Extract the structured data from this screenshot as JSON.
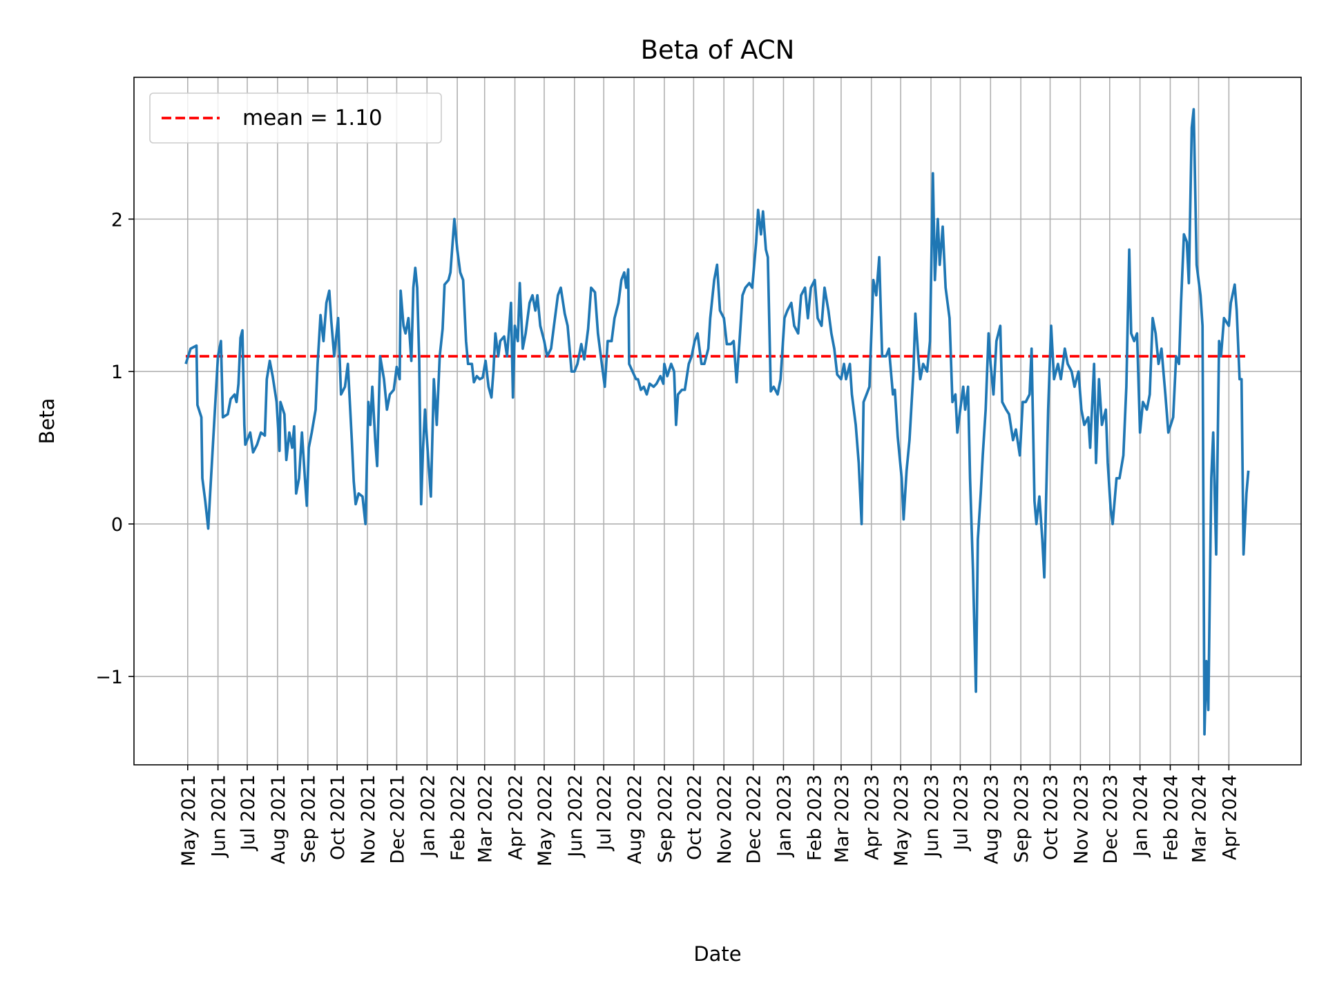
{
  "chart_data": {
    "type": "line",
    "title": "Beta of ACN",
    "xlabel": "Date",
    "ylabel": "Beta",
    "xlim": [
      "2021-03-07",
      "2024-06-14"
    ],
    "ylim": [
      -1.58,
      2.93
    ],
    "grid": true,
    "legend_position": "top-left",
    "yticks": [
      -1,
      0,
      1,
      2
    ],
    "ytick_labels": [
      "−1",
      "0",
      "1",
      "2"
    ],
    "xtick_labels": [
      "May 2021",
      "Jun 2021",
      "Jul 2021",
      "Aug 2021",
      "Sep 2021",
      "Oct 2021",
      "Nov 2021",
      "Dec 2021",
      "Jan 2022",
      "Feb 2022",
      "Mar 2022",
      "Apr 2022",
      "May 2022",
      "Jun 2022",
      "Jul 2022",
      "Aug 2022",
      "Sep 2022",
      "Oct 2022",
      "Nov 2022",
      "Dec 2022",
      "Jan 2023",
      "Feb 2023",
      "Mar 2023",
      "Apr 2023",
      "May 2023",
      "Jun 2023",
      "Jul 2023",
      "Aug 2023",
      "Sep 2023",
      "Oct 2023",
      "Nov 2023",
      "Dec 2023",
      "Jan 2024",
      "Feb 2024",
      "Mar 2024",
      "Apr 2024"
    ],
    "mean_line": {
      "label": "mean = 1.10",
      "value": 1.1,
      "color": "#ff0000",
      "style": "dashed"
    },
    "series": [
      {
        "color": "#1f77b4",
        "x": [
          "2021-04-29",
          "2021-05-04",
          "2021-05-10",
          "2021-05-11",
          "2021-05-15",
          "2021-05-16",
          "2021-05-19",
          "2021-05-22",
          "2021-05-24",
          "2021-06-01",
          "2021-06-04",
          "2021-06-06",
          "2021-06-11",
          "2021-06-14",
          "2021-06-18",
          "2021-06-20",
          "2021-06-22",
          "2021-06-24",
          "2021-06-26",
          "2021-06-28",
          "2021-06-29",
          "2021-07-04",
          "2021-07-07",
          "2021-07-11",
          "2021-07-15",
          "2021-07-19",
          "2021-07-21",
          "2021-07-24",
          "2021-07-27",
          "2021-07-31",
          "2021-08-03",
          "2021-08-04",
          "2021-08-08",
          "2021-08-10",
          "2021-08-13",
          "2021-08-16",
          "2021-08-18",
          "2021-08-20",
          "2021-08-23",
          "2021-08-26",
          "2021-08-29",
          "2021-08-31",
          "2021-09-02",
          "2021-09-05",
          "2021-09-09",
          "2021-09-11",
          "2021-09-14",
          "2021-09-17",
          "2021-09-20",
          "2021-09-23",
          "2021-09-25",
          "2021-09-28",
          "2021-10-02",
          "2021-10-05",
          "2021-10-09",
          "2021-10-12",
          "2021-10-16",
          "2021-10-18",
          "2021-10-20",
          "2021-10-23",
          "2021-10-27",
          "2021-10-30",
          "2021-11-02",
          "2021-11-04",
          "2021-11-06",
          "2021-11-09",
          "2021-11-11",
          "2021-11-14",
          "2021-11-18",
          "2021-11-21",
          "2021-11-24",
          "2021-11-28",
          "2021-12-01",
          "2021-12-04",
          "2021-12-05",
          "2021-12-08",
          "2021-12-10",
          "2021-12-13",
          "2021-12-16",
          "2021-12-18",
          "2021-12-20",
          "2021-12-22",
          "2021-12-24",
          "2021-12-26",
          "2021-12-28",
          "2021-12-30",
          "2022-01-02",
          "2022-01-05",
          "2022-01-08",
          "2022-01-11",
          "2022-01-14",
          "2022-01-17",
          "2022-01-19",
          "2022-01-23",
          "2022-01-25",
          "2022-01-29",
          "2022-02-01",
          "2022-02-04",
          "2022-02-07",
          "2022-02-10",
          "2022-02-12",
          "2022-02-16",
          "2022-02-18",
          "2022-02-21",
          "2022-02-24",
          "2022-02-27",
          "2022-03-02",
          "2022-03-05",
          "2022-03-08",
          "2022-03-10",
          "2022-03-12",
          "2022-03-15",
          "2022-03-17",
          "2022-03-21",
          "2022-03-24",
          "2022-03-28",
          "2022-03-30",
          "2022-04-01",
          "2022-04-04",
          "2022-04-06",
          "2022-04-09",
          "2022-04-12",
          "2022-04-16",
          "2022-04-19",
          "2022-04-22",
          "2022-04-24",
          "2022-04-27",
          "2022-05-01",
          "2022-05-04",
          "2022-05-08",
          "2022-05-11",
          "2022-05-15",
          "2022-05-18",
          "2022-05-22",
          "2022-05-25",
          "2022-05-29",
          "2022-06-01",
          "2022-06-04",
          "2022-06-08",
          "2022-06-11",
          "2022-06-15",
          "2022-06-18",
          "2022-06-22",
          "2022-06-25",
          "2022-06-29",
          "2022-07-02",
          "2022-07-05",
          "2022-07-09",
          "2022-07-12",
          "2022-07-16",
          "2022-07-19",
          "2022-07-22",
          "2022-07-24",
          "2022-07-26",
          "2022-07-27",
          "2022-08-03",
          "2022-08-05",
          "2022-08-08",
          "2022-08-11",
          "2022-08-14",
          "2022-08-17",
          "2022-08-21",
          "2022-08-24",
          "2022-08-28",
          "2022-08-31",
          "2022-09-01",
          "2022-09-04",
          "2022-09-08",
          "2022-09-11",
          "2022-09-13",
          "2022-09-15",
          "2022-09-19",
          "2022-09-22",
          "2022-09-26",
          "2022-09-29",
          "2022-10-02",
          "2022-10-05",
          "2022-10-09",
          "2022-10-12",
          "2022-10-16",
          "2022-10-18",
          "2022-10-22",
          "2022-10-25",
          "2022-10-28",
          "2022-11-01",
          "2022-11-04",
          "2022-11-08",
          "2022-11-11",
          "2022-11-14",
          "2022-11-17",
          "2022-11-20",
          "2022-11-23",
          "2022-11-27",
          "2022-11-30",
          "2022-12-04",
          "2022-12-06",
          "2022-12-09",
          "2022-12-11",
          "2022-12-14",
          "2022-12-16",
          "2022-12-19",
          "2022-12-22",
          "2022-12-26",
          "2022-12-29",
          "2023-01-02",
          "2023-01-05",
          "2023-01-09",
          "2023-01-12",
          "2023-01-16",
          "2023-01-19",
          "2023-01-23",
          "2023-01-26",
          "2023-01-29",
          "2023-02-02",
          "2023-02-05",
          "2023-02-09",
          "2023-02-12",
          "2023-02-16",
          "2023-02-19",
          "2023-02-22",
          "2023-02-25",
          "2023-03-01",
          "2023-03-04",
          "2023-03-06",
          "2023-03-10",
          "2023-03-12",
          "2023-03-16",
          "2023-03-19",
          "2023-03-22",
          "2023-03-24",
          "2023-03-27",
          "2023-03-30",
          "2023-04-03",
          "2023-04-06",
          "2023-04-09",
          "2023-04-12",
          "2023-04-16",
          "2023-04-19",
          "2023-04-23",
          "2023-04-25",
          "2023-04-28",
          "2023-05-02",
          "2023-05-04",
          "2023-05-07",
          "2023-05-10",
          "2023-05-14",
          "2023-05-16",
          "2023-05-19",
          "2023-05-21",
          "2023-05-24",
          "2023-05-28",
          "2023-05-31",
          "2023-06-03",
          "2023-06-05",
          "2023-06-08",
          "2023-06-10",
          "2023-06-13",
          "2023-06-16",
          "2023-06-20",
          "2023-06-23",
          "2023-06-26",
          "2023-06-28",
          "2023-07-01",
          "2023-07-04",
          "2023-07-06",
          "2023-07-09",
          "2023-07-11",
          "2023-07-14",
          "2023-07-17",
          "2023-07-19",
          "2023-07-22",
          "2023-07-24",
          "2023-07-27",
          "2023-07-30",
          "2023-08-01",
          "2023-08-04",
          "2023-08-07",
          "2023-08-11",
          "2023-08-13",
          "2023-08-17",
          "2023-08-20",
          "2023-08-24",
          "2023-08-27",
          "2023-08-31",
          "2023-09-03",
          "2023-09-06",
          "2023-09-10",
          "2023-09-12",
          "2023-09-15",
          "2023-09-17",
          "2023-09-20",
          "2023-09-23",
          "2023-09-25",
          "2023-09-29",
          "2023-10-02",
          "2023-10-05",
          "2023-10-09",
          "2023-10-12",
          "2023-10-16",
          "2023-10-19",
          "2023-10-23",
          "2023-10-26",
          "2023-10-30",
          "2023-11-02",
          "2023-11-05",
          "2023-11-09",
          "2023-11-11",
          "2023-11-15",
          "2023-11-17",
          "2023-11-20",
          "2023-11-23",
          "2023-11-27",
          "2023-11-29",
          "2023-12-02",
          "2023-12-04",
          "2023-12-08",
          "2023-12-11",
          "2023-12-15",
          "2023-12-18",
          "2023-12-21",
          "2023-12-23",
          "2023-12-26",
          "2023-12-29",
          "2024-01-01",
          "2024-01-04",
          "2024-01-08",
          "2024-01-11",
          "2024-01-14",
          "2024-01-17",
          "2024-01-20",
          "2024-01-23",
          "2024-01-27",
          "2024-01-30",
          "2024-02-04",
          "2024-02-07",
          "2024-02-10",
          "2024-02-12",
          "2024-02-15",
          "2024-02-18",
          "2024-02-20",
          "2024-02-23",
          "2024-02-25",
          "2024-02-28",
          "2024-03-03",
          "2024-03-05",
          "2024-03-07",
          "2024-03-09",
          "2024-03-11",
          "2024-03-14",
          "2024-03-16",
          "2024-03-19",
          "2024-03-22",
          "2024-03-24",
          "2024-03-27",
          "2024-04-01",
          "2024-04-03",
          "2024-04-07",
          "2024-04-09",
          "2024-04-12",
          "2024-04-14",
          "2024-04-16",
          "2024-04-19",
          "2024-04-21"
        ],
        "y": [
          1.05,
          1.15,
          1.17,
          0.78,
          0.7,
          0.3,
          0.15,
          -0.03,
          0.2,
          1.1,
          1.2,
          0.7,
          0.72,
          0.82,
          0.85,
          0.8,
          0.92,
          1.22,
          1.27,
          0.65,
          0.52,
          0.6,
          0.47,
          0.52,
          0.6,
          0.58,
          0.95,
          1.07,
          0.97,
          0.8,
          0.48,
          0.8,
          0.72,
          0.42,
          0.6,
          0.5,
          0.64,
          0.2,
          0.3,
          0.6,
          0.3,
          0.12,
          0.5,
          0.6,
          0.75,
          1.05,
          1.37,
          1.2,
          1.45,
          1.53,
          1.33,
          1.1,
          1.35,
          0.85,
          0.9,
          1.05,
          0.55,
          0.28,
          0.13,
          0.2,
          0.18,
          0.0,
          0.8,
          0.65,
          0.9,
          0.55,
          0.38,
          1.1,
          0.95,
          0.75,
          0.85,
          0.88,
          1.03,
          0.95,
          1.53,
          1.3,
          1.25,
          1.35,
          1.07,
          1.55,
          1.68,
          1.55,
          1.08,
          0.13,
          0.5,
          0.75,
          0.45,
          0.18,
          0.95,
          0.65,
          1.1,
          1.28,
          1.57,
          1.6,
          1.65,
          2.0,
          1.8,
          1.65,
          1.6,
          1.2,
          1.05,
          1.05,
          0.93,
          0.97,
          0.95,
          0.96,
          1.07,
          0.9,
          0.83,
          1.0,
          1.25,
          1.1,
          1.2,
          1.23,
          1.1,
          1.45,
          0.83,
          1.3,
          1.2,
          1.58,
          1.15,
          1.25,
          1.45,
          1.5,
          1.4,
          1.5,
          1.3,
          1.2,
          1.1,
          1.15,
          1.3,
          1.5,
          1.55,
          1.38,
          1.3,
          1.0,
          1.0,
          1.05,
          1.18,
          1.08,
          1.28,
          1.55,
          1.52,
          1.25,
          1.05,
          0.9,
          1.2,
          1.2,
          1.35,
          1.45,
          1.6,
          1.65,
          1.55,
          1.67,
          1.05,
          0.95,
          0.95,
          0.88,
          0.9,
          0.85,
          0.92,
          0.9,
          0.92,
          0.97,
          0.92,
          1.05,
          0.97,
          1.05,
          1.0,
          0.65,
          0.85,
          0.88,
          0.88,
          1.05,
          1.1,
          1.2,
          1.25,
          1.05,
          1.05,
          1.15,
          1.35,
          1.6,
          1.7,
          1.4,
          1.35,
          1.18,
          1.18,
          1.2,
          0.93,
          1.2,
          1.5,
          1.55,
          1.58,
          1.55,
          1.85,
          2.06,
          1.9,
          2.05,
          1.8,
          1.75,
          0.87,
          0.9,
          0.85,
          0.95,
          1.35,
          1.4,
          1.45,
          1.3,
          1.25,
          1.5,
          1.55,
          1.35,
          1.55,
          1.6,
          1.35,
          1.3,
          1.55,
          1.4,
          1.25,
          1.15,
          0.98,
          0.95,
          1.05,
          0.95,
          1.05,
          0.85,
          0.65,
          0.4,
          0.0,
          0.8,
          0.85,
          0.9,
          1.6,
          1.5,
          1.75,
          1.1,
          1.1,
          1.15,
          0.85,
          0.88,
          0.57,
          0.3,
          0.03,
          0.35,
          0.55,
          1.0,
          1.38,
          1.1,
          0.95,
          1.05,
          1.0,
          1.2,
          2.3,
          1.6,
          2.0,
          1.7,
          1.95,
          1.55,
          1.35,
          0.8,
          0.85,
          0.6,
          0.75,
          0.9,
          0.75,
          0.9,
          0.3,
          -0.3,
          -1.1,
          -0.1,
          0.2,
          0.45,
          0.75,
          1.25,
          1.05,
          0.85,
          1.2,
          1.3,
          0.8,
          0.75,
          0.72,
          0.55,
          0.62,
          0.45,
          0.8,
          0.8,
          0.85,
          1.15,
          0.15,
          0.0,
          0.18,
          -0.1,
          -0.35,
          0.75,
          1.3,
          0.95,
          1.05,
          0.95,
          1.15,
          1.05,
          1.0,
          0.9,
          1.0,
          0.75,
          0.65,
          0.7,
          0.5,
          1.05,
          0.4,
          0.95,
          0.65,
          0.75,
          0.4,
          0.1,
          0.0,
          0.3,
          0.3,
          0.45,
          0.9,
          1.8,
          1.25,
          1.2,
          1.25,
          0.6,
          0.8,
          0.75,
          0.85,
          1.35,
          1.25,
          1.05,
          1.15,
          0.85,
          0.6,
          0.7,
          1.1,
          1.05,
          1.45,
          1.9,
          1.85,
          1.58,
          2.6,
          2.72,
          1.7,
          1.5,
          1.3,
          -1.38,
          -0.9,
          -1.22,
          0.3,
          0.6,
          -0.2,
          1.2,
          1.1,
          1.35,
          1.3,
          1.45,
          1.57,
          1.4,
          0.95,
          0.95,
          -0.2,
          0.2,
          0.35
        ]
      }
    ]
  }
}
